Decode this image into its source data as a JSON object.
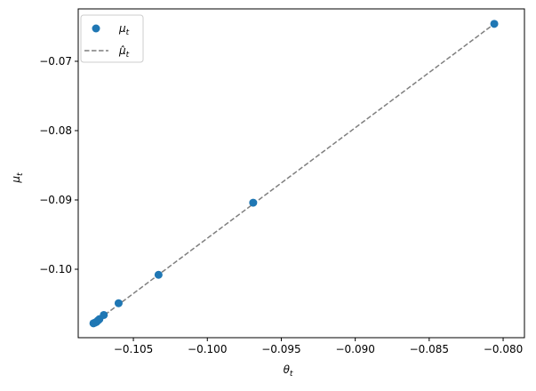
{
  "chart_data": {
    "type": "scatter",
    "xlabel": "θ",
    "xlabel_sub": "t",
    "ylabel": "μ",
    "ylabel_sub": "t",
    "xlim": [
      -0.10873,
      -0.07856
    ],
    "ylim": [
      -0.10987,
      -0.06244
    ],
    "xticks": [
      -0.105,
      -0.1,
      -0.095,
      -0.09,
      -0.085,
      -0.08
    ],
    "xtick_labels": [
      "−0.105",
      "−0.100",
      "−0.095",
      "−0.090",
      "−0.085",
      "−0.080"
    ],
    "yticks": [
      -0.1,
      -0.09,
      -0.08,
      -0.07
    ],
    "ytick_labels": [
      "−0.10",
      "−0.09",
      "−0.08",
      "−0.07"
    ],
    "grid": false,
    "legend_placement": "top-left",
    "series": [
      {
        "name": "μ_t",
        "legend_label": "μ",
        "legend_sub": "t",
        "kind": "scatter",
        "color": "#1f77b4",
        "x": [
          -0.1077,
          -0.1076,
          -0.1075,
          -0.1074,
          -0.1073,
          -0.107,
          -0.106,
          -0.1033,
          -0.0969,
          -0.0806
        ],
        "y": [
          -0.1078,
          -0.1077,
          -0.1076,
          -0.1074,
          -0.1072,
          -0.1066,
          -0.1049,
          -0.1008,
          -0.0904,
          -0.0646
        ]
      },
      {
        "name": "μ̂_t",
        "legend_label": "μ̂",
        "legend_sub": "t",
        "kind": "dashed-line",
        "color": "#7f7f7f",
        "x": [
          -0.1077,
          -0.0806
        ],
        "y": [
          -0.1078,
          -0.0646
        ]
      }
    ]
  }
}
